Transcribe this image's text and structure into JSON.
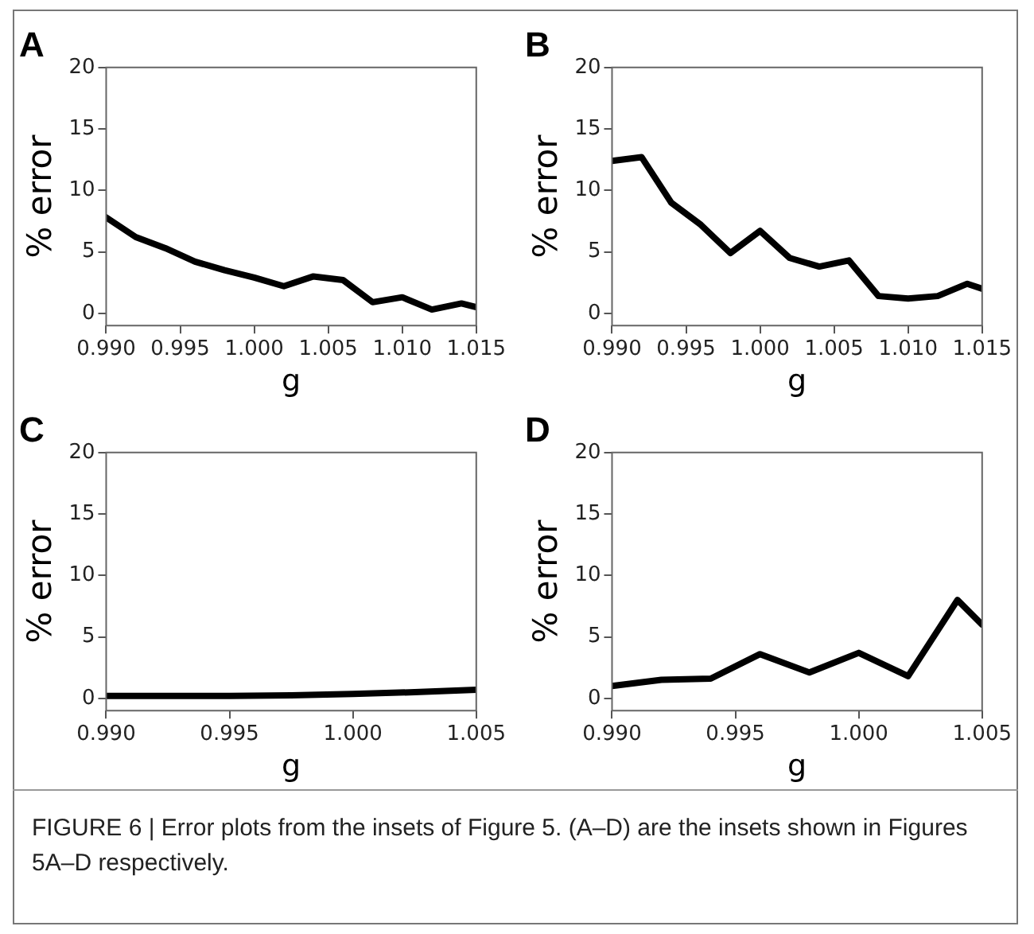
{
  "chart_data": [
    {
      "type": "line",
      "title": "A",
      "xlabel": "g",
      "ylabel": "% error",
      "marker": "none",
      "color": "#000000",
      "x": [
        0.99,
        0.992,
        0.994,
        0.996,
        0.998,
        1.0,
        1.002,
        1.004,
        1.006,
        1.008,
        1.01,
        1.012,
        1.014,
        1.015
      ],
      "values": [
        7.8,
        6.2,
        5.3,
        4.2,
        3.5,
        2.9,
        2.2,
        3.0,
        2.7,
        0.9,
        1.3,
        0.3,
        0.8,
        0.5
      ],
      "xlim": [
        0.99,
        1.015
      ],
      "xticks": [
        {
          "value": 0.99,
          "label": "0.990"
        },
        {
          "value": 0.995,
          "label": "0.995"
        },
        {
          "value": 1.0,
          "label": "1.000"
        },
        {
          "value": 1.005,
          "label": "1.005"
        },
        {
          "value": 1.01,
          "label": "1.010"
        },
        {
          "value": 1.015,
          "label": "1.015"
        }
      ],
      "ylim": [
        -1,
        20
      ],
      "yticks": [
        0,
        5,
        10,
        15,
        20
      ]
    },
    {
      "type": "line",
      "title": "B",
      "xlabel": "g",
      "ylabel": "% error",
      "marker": "none",
      "color": "#000000",
      "x": [
        0.99,
        0.992,
        0.994,
        0.996,
        0.998,
        1.0,
        1.002,
        1.004,
        1.006,
        1.008,
        1.01,
        1.012,
        1.014,
        1.015
      ],
      "values": [
        12.4,
        12.7,
        9.0,
        7.2,
        4.9,
        6.7,
        4.5,
        3.8,
        4.3,
        1.4,
        1.2,
        1.4,
        2.4,
        2.0
      ],
      "xlim": [
        0.99,
        1.015
      ],
      "xticks": [
        {
          "value": 0.99,
          "label": "0.990"
        },
        {
          "value": 0.995,
          "label": "0.995"
        },
        {
          "value": 1.0,
          "label": "1.000"
        },
        {
          "value": 1.005,
          "label": "1.005"
        },
        {
          "value": 1.01,
          "label": "1.010"
        },
        {
          "value": 1.015,
          "label": "1.015"
        }
      ],
      "ylim": [
        -1,
        20
      ],
      "yticks": [
        0,
        5,
        10,
        15,
        20
      ]
    },
    {
      "type": "line",
      "title": "C",
      "xlabel": "g",
      "ylabel": "% error",
      "marker": "none",
      "color": "#000000",
      "x": [
        0.99,
        0.9925,
        0.995,
        0.9975,
        1.0,
        1.0025,
        1.005
      ],
      "values": [
        0.2,
        0.2,
        0.2,
        0.25,
        0.35,
        0.5,
        0.7
      ],
      "xlim": [
        0.99,
        1.005
      ],
      "xticks": [
        {
          "value": 0.99,
          "label": "0.990"
        },
        {
          "value": 0.995,
          "label": "0.995"
        },
        {
          "value": 1.0,
          "label": "1.000"
        },
        {
          "value": 1.005,
          "label": "1.005"
        }
      ],
      "ylim": [
        -1,
        20
      ],
      "yticks": [
        0,
        5,
        10,
        15,
        20
      ]
    },
    {
      "type": "line",
      "title": "D",
      "xlabel": "g",
      "ylabel": "% error",
      "marker": "none",
      "color": "#000000",
      "x": [
        0.99,
        0.992,
        0.994,
        0.996,
        0.998,
        1.0,
        1.002,
        1.004,
        1.005
      ],
      "values": [
        1.0,
        1.5,
        1.6,
        3.6,
        2.1,
        3.7,
        1.8,
        8.0,
        6.0
      ],
      "xlim": [
        0.99,
        1.005
      ],
      "xticks": [
        {
          "value": 0.99,
          "label": "0.990"
        },
        {
          "value": 0.995,
          "label": "0.995"
        },
        {
          "value": 1.0,
          "label": "1.000"
        },
        {
          "value": 1.005,
          "label": "1.005"
        }
      ],
      "ylim": [
        -1,
        20
      ],
      "yticks": [
        0,
        5,
        10,
        15,
        20
      ],
      "annotations": [
        "FIGURE 6 | Error plots from the insets of Figure 5. (A–D) are the insets shown in Figures 5A–D respectively."
      ]
    }
  ]
}
